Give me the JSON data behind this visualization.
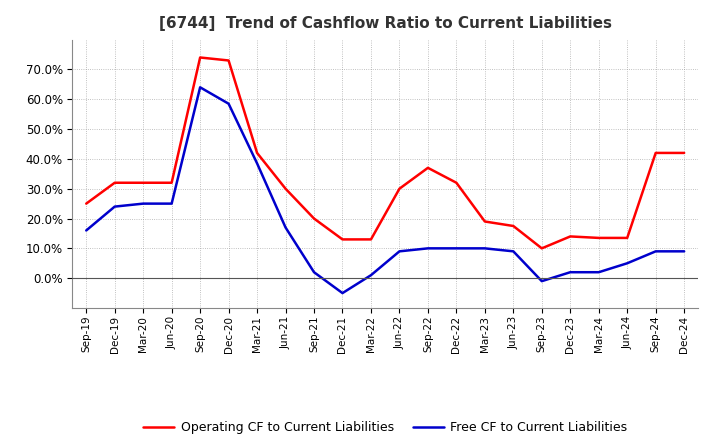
{
  "title": "[6744]  Trend of Cashflow Ratio to Current Liabilities",
  "x_labels": [
    "Sep-19",
    "Dec-19",
    "Mar-20",
    "Jun-20",
    "Sep-20",
    "Dec-20",
    "Mar-21",
    "Jun-21",
    "Sep-21",
    "Dec-21",
    "Mar-22",
    "Jun-22",
    "Sep-22",
    "Dec-22",
    "Mar-23",
    "Jun-23",
    "Sep-23",
    "Dec-23",
    "Mar-24",
    "Jun-24",
    "Sep-24",
    "Dec-24"
  ],
  "op_cf": [
    0.25,
    0.32,
    0.32,
    0.32,
    0.74,
    0.73,
    0.42,
    0.3,
    0.2,
    0.13,
    0.13,
    0.3,
    0.37,
    0.32,
    0.19,
    0.175,
    0.1,
    0.14,
    0.135,
    0.135,
    0.42,
    0.42
  ],
  "free_cf": [
    0.16,
    0.24,
    0.25,
    0.25,
    0.64,
    0.585,
    0.385,
    0.17,
    0.02,
    -0.05,
    0.01,
    0.09,
    0.1,
    0.1,
    0.1,
    0.09,
    -0.01,
    0.02,
    0.02,
    0.05,
    0.09,
    0.09
  ],
  "operating_color": "#ff0000",
  "free_color": "#0000cc",
  "ylim_min": -0.1,
  "ylim_max": 0.8,
  "yticks": [
    0.0,
    0.1,
    0.2,
    0.3,
    0.4,
    0.5,
    0.6,
    0.7
  ],
  "legend_op": "Operating CF to Current Liabilities",
  "legend_free": "Free CF to Current Liabilities",
  "background_color": "#ffffff",
  "grid_color": "#999999"
}
